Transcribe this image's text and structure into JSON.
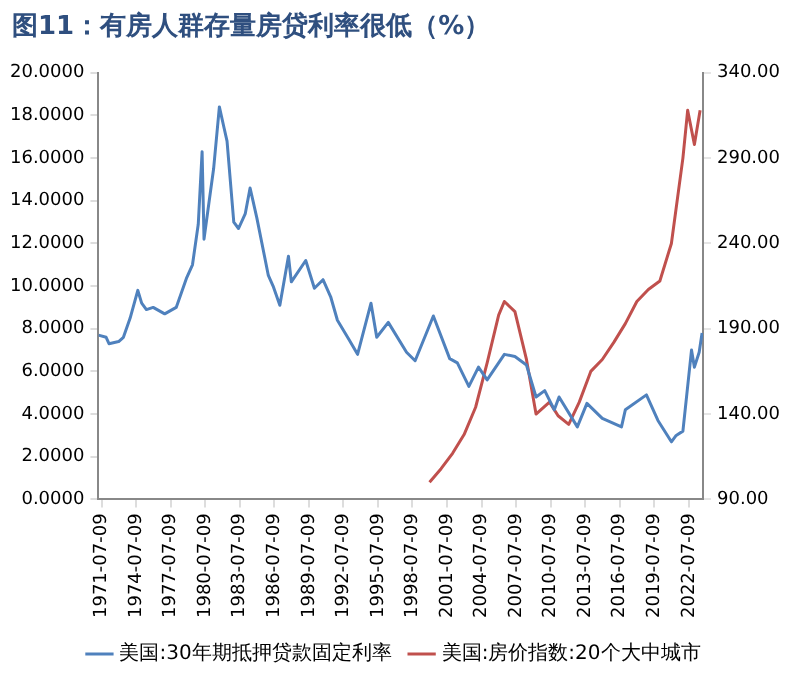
{
  "chart_data": {
    "type": "line",
    "title": "图11：有房人群存量房贷利率很低（%）",
    "xlim": [
      "1971-04-01",
      "2023-10-01"
    ],
    "xticks": [
      "1971-07-09",
      "1974-07-09",
      "1977-07-09",
      "1980-07-09",
      "1983-07-09",
      "1986-07-09",
      "1989-07-09",
      "1992-07-09",
      "1995-07-09",
      "1998-07-09",
      "2001-07-09",
      "2004-07-09",
      "2007-07-09",
      "2010-07-09",
      "2013-07-09",
      "2016-07-09",
      "2019-07-09",
      "2022-07-09"
    ],
    "ylim": [
      0,
      20
    ],
    "yticks": [
      {
        "value": 0,
        "label": "0.0000"
      },
      {
        "value": 2,
        "label": "2.0000"
      },
      {
        "value": 4,
        "label": "4.0000"
      },
      {
        "value": 6,
        "label": "6.0000"
      },
      {
        "value": 8,
        "label": "8.0000"
      },
      {
        "value": 10,
        "label": "10.0000"
      },
      {
        "value": 12,
        "label": "12.0000"
      },
      {
        "value": 14,
        "label": "14.0000"
      },
      {
        "value": 16,
        "label": "16.0000"
      },
      {
        "value": 18,
        "label": "18.0000"
      },
      {
        "value": 20,
        "label": "20.0000"
      }
    ],
    "y2lim": [
      90,
      340
    ],
    "y2ticks": [
      {
        "value": 90,
        "label": "90.00"
      },
      {
        "value": 140,
        "label": "140.00"
      },
      {
        "value": 190,
        "label": "190.00"
      },
      {
        "value": 240,
        "label": "240.00"
      },
      {
        "value": 290,
        "label": "290.00"
      },
      {
        "value": 340,
        "label": "340.00"
      }
    ],
    "grid": false,
    "legend": "bottom",
    "series": [
      {
        "name": "美国:30年期抵押贷款固定利率",
        "color": "#4f81bd",
        "x": [
          "1971-04",
          "1971-12",
          "1972-03",
          "1973-01",
          "1973-06",
          "1974-01",
          "1974-09",
          "1975-01",
          "1975-06",
          "1976-01",
          "1977-01",
          "1978-01",
          "1978-12",
          "1979-06",
          "1979-12",
          "1980-04",
          "1980-06",
          "1980-12",
          "1981-04",
          "1981-10",
          "1982-03",
          "1982-06",
          "1983-01",
          "1983-06",
          "1984-01",
          "1984-06",
          "1985-01",
          "1986-01",
          "1986-06",
          "1987-01",
          "1987-10",
          "1988-01",
          "1989-04",
          "1990-01",
          "1990-10",
          "1991-06",
          "1992-01",
          "1993-01",
          "1993-10",
          "1994-12",
          "1995-06",
          "1996-06",
          "1998-01",
          "1998-10",
          "2000-05",
          "2001-10",
          "2002-06",
          "2003-06",
          "2004-04",
          "2005-01",
          "2006-07",
          "2007-06",
          "2008-06",
          "2009-04",
          "2010-01",
          "2010-11",
          "2011-04",
          "2012-11",
          "2013-09",
          "2015-01",
          "2016-09",
          "2017-01",
          "2018-11",
          "2019-11",
          "2021-01",
          "2021-06",
          "2022-01",
          "2022-10",
          "2023-01",
          "2023-06",
          "2023-09"
        ],
        "values": [
          7.7,
          7.6,
          7.3,
          7.4,
          7.6,
          8.5,
          9.8,
          9.2,
          8.9,
          9.0,
          8.7,
          9.0,
          10.4,
          11.0,
          12.9,
          16.3,
          12.2,
          14.2,
          15.5,
          18.4,
          17.4,
          16.8,
          13.0,
          12.7,
          13.4,
          14.6,
          13.2,
          10.5,
          10.0,
          9.1,
          11.4,
          10.2,
          11.2,
          9.9,
          10.3,
          9.5,
          8.4,
          7.5,
          6.8,
          9.2,
          7.6,
          8.3,
          6.9,
          6.5,
          8.6,
          6.6,
          6.4,
          5.3,
          6.2,
          5.6,
          6.8,
          6.7,
          6.3,
          4.8,
          5.1,
          4.2,
          4.8,
          3.4,
          4.5,
          3.8,
          3.4,
          4.2,
          4.9,
          3.7,
          2.7,
          3.0,
          3.2,
          7.0,
          6.2,
          6.9,
          7.8
        ]
      },
      {
        "name": "美国:房价指数:20个大中城市",
        "color": "#c0504d",
        "axis": "y2",
        "x": [
          "2000-01",
          "2001-01",
          "2002-01",
          "2003-01",
          "2004-01",
          "2005-01",
          "2006-01",
          "2006-07",
          "2007-06",
          "2008-06",
          "2009-04",
          "2010-06",
          "2011-03",
          "2012-02",
          "2013-01",
          "2014-01",
          "2015-01",
          "2016-01",
          "2017-01",
          "2018-01",
          "2019-01",
          "2020-01",
          "2021-01",
          "2022-01",
          "2022-06",
          "2023-01",
          "2023-07"
        ],
        "values": [
          100,
          108,
          117,
          128,
          144,
          170,
          198,
          206,
          200,
          172,
          140,
          147,
          139,
          134,
          147,
          165,
          172,
          182,
          193,
          206,
          213,
          218,
          240,
          290,
          318,
          298,
          318
        ]
      }
    ]
  }
}
